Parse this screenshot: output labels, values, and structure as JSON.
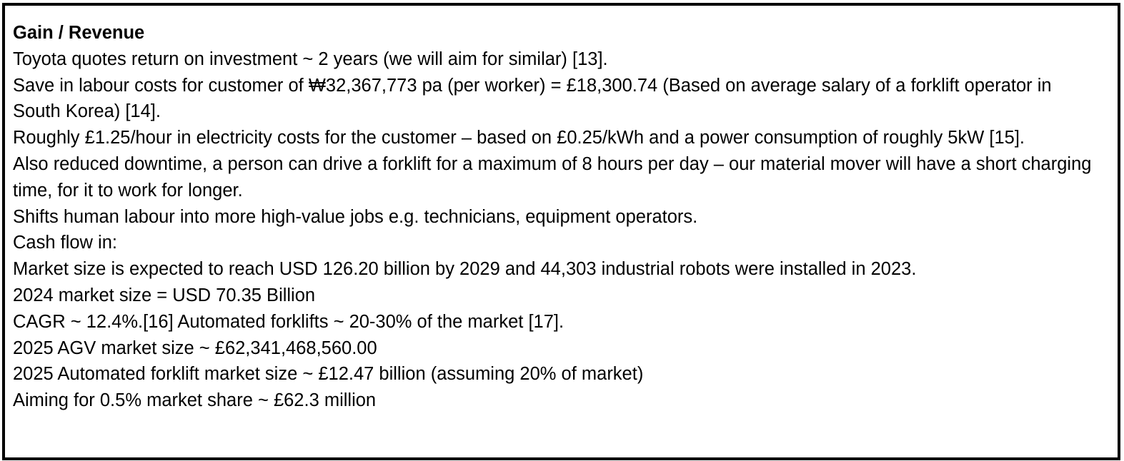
{
  "heading": "Gain / Revenue",
  "paragraphs": [
    "Toyota quotes return on investment ~ 2 years (we will aim for similar) [13].",
    "Save in labour costs for customer of ₩32,367,773 pa (per worker) = £18,300.74 (Based on average salary of a forklift operator in South Korea) [14].",
    "Roughly £1.25/hour in electricity costs for the customer – based on £0.25/kWh and a power consumption of roughly 5kW [15].",
    "Also reduced downtime, a person can drive a forklift for a maximum of 8 hours per day – our material mover will have a short charging time, for it to work for longer.",
    "Shifts human labour into more high-value jobs e.g. technicians, equipment operators.",
    "Cash flow in:",
    "Market size is expected to reach USD 126.20 billion by 2029 and 44,303 industrial robots were installed in 2023.",
    "2024 market size = USD 70.35 Billion",
    "CAGR ~ 12.4%.[16] Automated forklifts ~ 20-30% of the market [17].",
    "2025 AGV market size ~ £62,341,468,560.00",
    "2025 Automated forklift market size ~ £12.47 billion (assuming 20% of market)",
    "Aiming for 0.5% market share ~ £62.3 million"
  ]
}
